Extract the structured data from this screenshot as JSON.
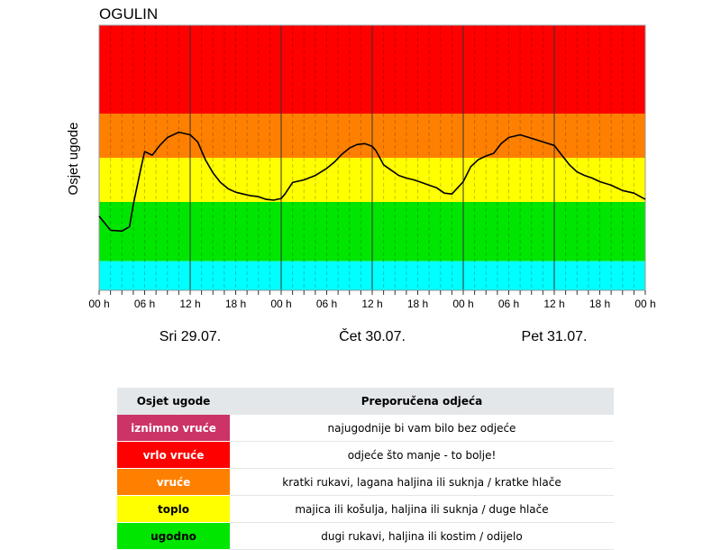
{
  "chart_data": {
    "type": "line",
    "title": "OGULIN",
    "ylabel": "Osjet ugode",
    "xlabel": "",
    "x_tick_labels": [
      "00 h",
      "06 h",
      "12 h",
      "18 h",
      "00 h",
      "06 h",
      "12 h",
      "18 h",
      "00 h",
      "06 h",
      "12 h",
      "18 h",
      "00 h"
    ],
    "day_labels": [
      "Sri 29.07.",
      "Čet 30.07.",
      "Pet 31.07."
    ],
    "bands": [
      {
        "name": "vrlo vruće",
        "color": "#ff0000",
        "from": 4,
        "to": 5
      },
      {
        "name": "vruće",
        "color": "#ff8000",
        "from": 3.5,
        "to": 4
      },
      {
        "name": "toplo",
        "color": "#ffff00",
        "from": 3,
        "to": 3.5
      },
      {
        "name": "ugodno",
        "color": "#00e600",
        "from": 2.33,
        "to": 3
      },
      {
        "name": "cyan",
        "color": "#00ffff",
        "from": 2,
        "to": 2.33
      }
    ],
    "grid": true,
    "series": [
      {
        "x": [
          0,
          3,
          6,
          8,
          9,
          11,
          12,
          14,
          16,
          18,
          21,
          24,
          26,
          28,
          30,
          32,
          34,
          36,
          38,
          40,
          42,
          44,
          46,
          48,
          49,
          51,
          54,
          57,
          60,
          62,
          64,
          66,
          68,
          70,
          72,
          73,
          75,
          77,
          79,
          81,
          83,
          85,
          87,
          89,
          91,
          93,
          96,
          98,
          100,
          102,
          104,
          106,
          108,
          111,
          114,
          117,
          120,
          122,
          124,
          126,
          128,
          130,
          132,
          135,
          138,
          141,
          144
        ],
        "y": [
          2.84,
          2.68,
          2.67,
          2.72,
          2.97,
          3.38,
          3.57,
          3.53,
          3.64,
          3.73,
          3.79,
          3.76,
          3.68,
          3.48,
          3.33,
          3.22,
          3.15,
          3.11,
          3.09,
          3.07,
          3.06,
          3.03,
          3.02,
          3.04,
          3.09,
          3.22,
          3.25,
          3.3,
          3.38,
          3.45,
          3.54,
          3.61,
          3.65,
          3.66,
          3.63,
          3.58,
          3.42,
          3.36,
          3.3,
          3.27,
          3.25,
          3.22,
          3.19,
          3.16,
          3.1,
          3.09,
          3.23,
          3.4,
          3.48,
          3.52,
          3.55,
          3.66,
          3.73,
          3.76,
          3.72,
          3.68,
          3.64,
          3.53,
          3.42,
          3.34,
          3.3,
          3.27,
          3.23,
          3.19,
          3.13,
          3.1,
          3.03
        ],
        "ylim": [
          2,
          5
        ]
      }
    ]
  },
  "legend": {
    "header": {
      "col1": "Osjet ugode",
      "col2": "Preporučena odjeća"
    },
    "rows": [
      {
        "level": "iznimno vruće",
        "clothing": "najugodnije bi vam bilo bez odjeće",
        "color": "#cc3366",
        "text_color": "#ffffff"
      },
      {
        "level": "vrlo vruće",
        "clothing": "odjeće što manje - to bolje!",
        "color": "#ff0000",
        "text_color": "#ffffff"
      },
      {
        "level": "vruće",
        "clothing": "kratki rukavi, lagana haljina ili suknja / kratke hlače",
        "color": "#ff8000",
        "text_color": "#ffffff"
      },
      {
        "level": "toplo",
        "clothing": "majica ili košulja, haljina ili suknja / duge hlače",
        "color": "#ffff00",
        "text_color": "#000000"
      },
      {
        "level": "ugodno",
        "clothing": "dugi rukavi, haljina ili kostim / odijelo",
        "color": "#00e600",
        "text_color": "#000000"
      }
    ]
  }
}
